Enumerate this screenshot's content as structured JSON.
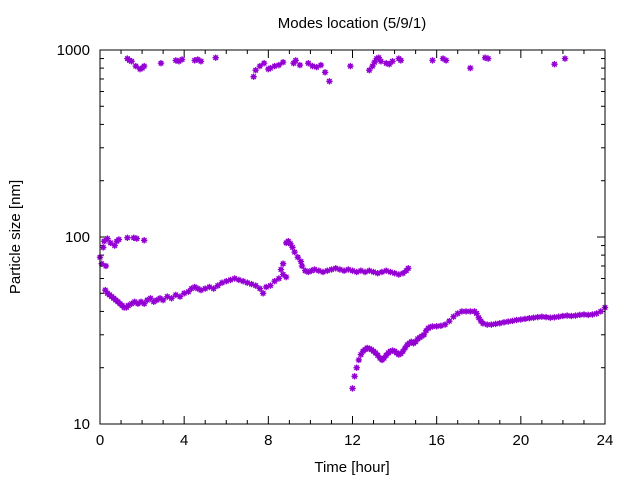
{
  "chart_data": {
    "type": "scatter",
    "title": "Modes location (5/9/1)",
    "xlabel": "Time [hour]",
    "ylabel": "Particle size [nm]",
    "xlim": [
      0,
      24
    ],
    "ylim": [
      10,
      1000
    ],
    "yscale": "log",
    "x_ticks": [
      0,
      4,
      8,
      12,
      16,
      20,
      24
    ],
    "x_tick_labels": [
      "0",
      "4",
      "8",
      "12",
      "16",
      "20",
      "24"
    ],
    "y_ticks": [
      10,
      100,
      1000
    ],
    "y_tick_labels": [
      "10",
      "100",
      "1000"
    ],
    "grid": false,
    "legend": "none",
    "marker_color": "#9400d3",
    "series": [
      {
        "mode": "coarse",
        "points": [
          [
            1.3,
            900
          ],
          [
            1.4,
            880
          ],
          [
            1.5,
            870
          ],
          [
            1.7,
            820
          ],
          [
            1.9,
            790
          ],
          [
            2.0,
            800
          ],
          [
            2.1,
            820
          ],
          [
            2.9,
            850
          ],
          [
            3.6,
            880
          ],
          [
            3.75,
            870
          ],
          [
            3.9,
            890
          ],
          [
            4.5,
            880
          ],
          [
            4.65,
            890
          ],
          [
            4.8,
            870
          ],
          [
            5.5,
            910
          ],
          [
            7.3,
            720
          ],
          [
            7.4,
            780
          ],
          [
            7.6,
            820
          ],
          [
            7.8,
            850
          ],
          [
            8.0,
            790
          ],
          [
            8.1,
            800
          ],
          [
            8.3,
            820
          ],
          [
            8.5,
            830
          ],
          [
            8.7,
            860
          ],
          [
            9.2,
            850
          ],
          [
            9.3,
            880
          ],
          [
            9.5,
            830
          ],
          [
            9.9,
            850
          ],
          [
            10.1,
            820
          ],
          [
            10.3,
            810
          ],
          [
            10.5,
            830
          ],
          [
            10.7,
            760
          ],
          [
            10.9,
            680
          ],
          [
            11.9,
            820
          ],
          [
            12.8,
            780
          ],
          [
            12.95,
            820
          ],
          [
            13.05,
            860
          ],
          [
            13.15,
            900
          ],
          [
            13.25,
            910
          ],
          [
            13.35,
            870
          ],
          [
            13.6,
            850
          ],
          [
            13.75,
            840
          ],
          [
            13.9,
            870
          ],
          [
            14.2,
            900
          ],
          [
            14.3,
            880
          ],
          [
            15.8,
            880
          ],
          [
            16.3,
            900
          ],
          [
            16.45,
            880
          ],
          [
            17.6,
            800
          ],
          [
            18.3,
            910
          ],
          [
            18.45,
            900
          ],
          [
            21.6,
            840
          ],
          [
            22.1,
            900
          ]
        ]
      },
      {
        "mode": "upper-fine",
        "points": [
          [
            0.0,
            78
          ],
          [
            0.08,
            72
          ],
          [
            0.15,
            88
          ],
          [
            0.2,
            95
          ],
          [
            0.28,
            70
          ],
          [
            0.35,
            98
          ],
          [
            0.5,
            93
          ],
          [
            0.7,
            90
          ],
          [
            0.8,
            95
          ],
          [
            0.9,
            97
          ],
          [
            1.3,
            99
          ],
          [
            1.6,
            99
          ],
          [
            1.75,
            98
          ],
          [
            2.1,
            96
          ],
          [
            8.85,
            93
          ],
          [
            8.95,
            95
          ],
          [
            9.05,
            92
          ],
          [
            9.15,
            88
          ],
          [
            9.25,
            83
          ],
          [
            9.4,
            78
          ],
          [
            9.55,
            74
          ],
          [
            8.7,
            72
          ],
          [
            8.6,
            67
          ]
        ]
      },
      {
        "mode": "lower-fine",
        "points": [
          [
            0.25,
            52
          ],
          [
            0.35,
            50
          ],
          [
            0.45,
            49
          ],
          [
            0.55,
            48
          ],
          [
            0.65,
            47
          ],
          [
            0.75,
            46
          ],
          [
            0.85,
            45
          ],
          [
            0.95,
            44
          ],
          [
            1.05,
            43
          ],
          [
            1.15,
            42
          ],
          [
            1.25,
            42
          ],
          [
            1.35,
            43
          ],
          [
            1.5,
            44
          ],
          [
            1.65,
            45
          ],
          [
            1.8,
            44
          ],
          [
            1.95,
            45
          ],
          [
            2.1,
            44
          ],
          [
            2.25,
            46
          ],
          [
            2.4,
            47
          ],
          [
            2.55,
            45
          ],
          [
            2.7,
            46
          ],
          [
            2.85,
            47
          ],
          [
            3.0,
            46
          ],
          [
            3.2,
            48
          ],
          [
            3.4,
            47
          ],
          [
            3.6,
            49
          ],
          [
            3.8,
            48
          ],
          [
            4.0,
            50
          ],
          [
            4.2,
            51
          ],
          [
            4.35,
            53
          ],
          [
            4.5,
            54
          ],
          [
            4.65,
            53
          ],
          [
            4.8,
            52
          ],
          [
            5.0,
            53
          ],
          [
            5.2,
            54
          ],
          [
            5.4,
            53
          ],
          [
            5.6,
            55
          ],
          [
            5.8,
            57
          ],
          [
            6.0,
            58
          ],
          [
            6.2,
            59
          ],
          [
            6.4,
            60
          ],
          [
            6.6,
            59
          ],
          [
            6.8,
            58
          ],
          [
            7.0,
            57
          ],
          [
            7.2,
            56
          ],
          [
            7.4,
            55
          ],
          [
            7.6,
            53
          ],
          [
            7.75,
            50
          ],
          [
            7.9,
            54
          ],
          [
            8.1,
            55
          ],
          [
            8.3,
            58
          ],
          [
            8.5,
            60
          ],
          [
            8.7,
            63
          ],
          [
            8.85,
            61
          ],
          [
            9.6,
            70
          ],
          [
            9.75,
            66
          ],
          [
            9.9,
            65
          ],
          [
            10.05,
            66
          ],
          [
            10.2,
            67
          ],
          [
            10.4,
            66
          ],
          [
            10.6,
            65
          ],
          [
            10.8,
            66
          ],
          [
            11.0,
            67
          ],
          [
            11.2,
            68
          ],
          [
            11.4,
            67
          ],
          [
            11.6,
            66
          ],
          [
            11.8,
            67
          ],
          [
            12.0,
            66
          ],
          [
            12.2,
            65
          ],
          [
            12.4,
            66
          ],
          [
            12.6,
            65
          ],
          [
            12.8,
            66
          ],
          [
            13.0,
            65
          ],
          [
            13.2,
            64
          ],
          [
            13.4,
            65
          ],
          [
            13.6,
            66
          ],
          [
            13.8,
            65
          ],
          [
            14.0,
            64
          ],
          [
            14.2,
            63
          ],
          [
            14.4,
            64
          ],
          [
            14.55,
            66
          ],
          [
            14.65,
            68
          ]
        ]
      },
      {
        "mode": "nucleation",
        "points": [
          [
            12.0,
            15.5
          ],
          [
            12.1,
            18
          ],
          [
            12.2,
            20
          ],
          [
            12.3,
            22
          ],
          [
            12.4,
            23.5
          ],
          [
            12.5,
            24.5
          ],
          [
            12.6,
            25
          ],
          [
            12.7,
            25.5
          ],
          [
            12.8,
            25.3
          ],
          [
            12.9,
            25
          ],
          [
            13.0,
            24.5
          ],
          [
            13.1,
            24
          ],
          [
            13.2,
            23.3
          ],
          [
            13.3,
            22.5
          ],
          [
            13.4,
            22
          ],
          [
            13.5,
            22.5
          ],
          [
            13.6,
            23.3
          ],
          [
            13.7,
            24
          ],
          [
            13.8,
            24.5
          ],
          [
            13.9,
            24.7
          ],
          [
            14.0,
            24.5
          ],
          [
            14.1,
            24
          ],
          [
            14.2,
            23.5
          ],
          [
            14.3,
            23.8
          ],
          [
            14.4,
            24.5
          ],
          [
            14.5,
            25.5
          ],
          [
            14.6,
            26.5
          ],
          [
            14.7,
            27
          ],
          [
            14.8,
            27.5
          ],
          [
            14.9,
            27
          ],
          [
            15.0,
            27.5
          ],
          [
            15.1,
            28.5
          ],
          [
            15.2,
            29
          ],
          [
            15.3,
            29.5
          ],
          [
            15.4,
            30
          ],
          [
            15.5,
            31.5
          ],
          [
            15.6,
            32.5
          ],
          [
            15.7,
            33
          ],
          [
            15.8,
            33.2
          ],
          [
            16.0,
            33.3
          ],
          [
            16.2,
            33.5
          ],
          [
            16.4,
            34
          ],
          [
            16.6,
            35.5
          ],
          [
            16.8,
            37.5
          ],
          [
            17.0,
            39
          ],
          [
            17.2,
            40
          ],
          [
            17.4,
            40
          ],
          [
            17.6,
            40
          ],
          [
            17.8,
            40
          ],
          [
            17.9,
            39
          ],
          [
            18.0,
            37
          ],
          [
            18.1,
            35.5
          ],
          [
            18.2,
            34.5
          ],
          [
            18.4,
            34
          ],
          [
            18.6,
            34
          ],
          [
            18.8,
            34.3
          ],
          [
            19.0,
            34.6
          ],
          [
            19.2,
            35
          ],
          [
            19.4,
            35.3
          ],
          [
            19.6,
            35.6
          ],
          [
            19.8,
            36
          ],
          [
            20.0,
            36.2
          ],
          [
            20.2,
            36.5
          ],
          [
            20.4,
            36.8
          ],
          [
            20.6,
            37
          ],
          [
            20.8,
            37.3
          ],
          [
            21.0,
            37.5
          ],
          [
            21.2,
            37.3
          ],
          [
            21.4,
            37
          ],
          [
            21.6,
            37.2
          ],
          [
            21.8,
            37.5
          ],
          [
            22.0,
            37.8
          ],
          [
            22.2,
            38
          ],
          [
            22.4,
            37.8
          ],
          [
            22.6,
            38
          ],
          [
            22.8,
            38.3
          ],
          [
            23.0,
            38.5
          ],
          [
            23.2,
            38.3
          ],
          [
            23.4,
            38.5
          ],
          [
            23.6,
            39
          ],
          [
            23.8,
            40
          ],
          [
            24.0,
            42
          ]
        ]
      }
    ]
  }
}
